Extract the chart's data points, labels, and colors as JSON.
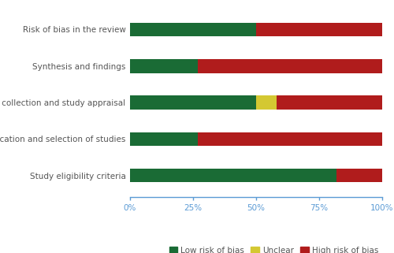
{
  "categories": [
    "Study eligibility criteria",
    "Identification and selection of studies",
    "Data collection and study appraisal",
    "Synthesis and findings",
    "Risk of bias in the review"
  ],
  "low_risk": [
    82,
    27,
    50,
    27,
    50
  ],
  "unclear": [
    0,
    0,
    8,
    0,
    0
  ],
  "high_risk": [
    18,
    73,
    42,
    73,
    50
  ],
  "colors": {
    "low_risk": "#1a6b35",
    "unclear": "#d4c832",
    "high_risk": "#b01c1c"
  },
  "legend_labels": [
    "Low risk of bias",
    "Unclear",
    "High risk of bias"
  ],
  "xlim": [
    0,
    100
  ],
  "xtick_labels": [
    "0%",
    "25%",
    "50%",
    "75%",
    "100%"
  ],
  "xtick_values": [
    0,
    25,
    50,
    75,
    100
  ],
  "background_color": "#ffffff",
  "bar_height": 0.38,
  "axis_color": "#5b9bd5",
  "label_fontsize": 7.5,
  "tick_fontsize": 7.5,
  "legend_fontsize": 7.5
}
